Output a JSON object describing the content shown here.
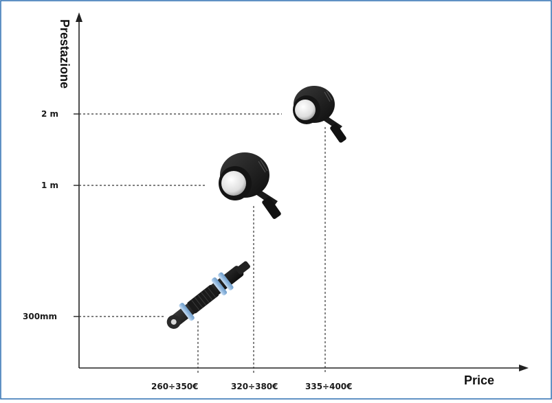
{
  "chart_data": {
    "type": "scatter",
    "xlabel": "Price",
    "ylabel": "Prestazione",
    "points": [
      {
        "x": "260÷350€",
        "y": "300mm",
        "icon": "cylindrical-sensor-icon"
      },
      {
        "x": "320÷380€",
        "y": "1 m",
        "icon": "angled-sensor-icon"
      },
      {
        "x": "335÷400€",
        "y": "2 m",
        "icon": "angled-sensor-small-icon"
      }
    ],
    "x_ticks": [
      "260÷350€",
      "320÷380€",
      "335÷400€"
    ],
    "y_ticks": [
      "300mm",
      "1 m",
      "2 m"
    ],
    "grid": false,
    "colors": {
      "border": "#2a6db0",
      "axis": "#222222",
      "sensor_body": "#1b1b1b",
      "sensor_face": "#e8e8e8",
      "ring": "#9ec3e6"
    }
  }
}
